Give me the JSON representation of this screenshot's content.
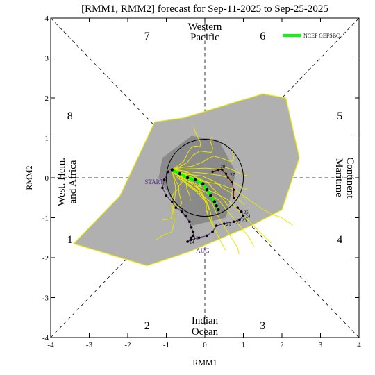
{
  "chart_data": {
    "type": "scatter",
    "title": "[RMM1, RMM2] forecast for Sep-11-2025 to Sep-25-2025",
    "xlabel": "RMM1",
    "ylabel": "RMM2",
    "xlim": [
      -4,
      4
    ],
    "ylim": [
      -4,
      4
    ],
    "x_ticks": [
      "-4",
      "-3",
      "-2",
      "-1",
      "0",
      "1",
      "2",
      "3",
      "4"
    ],
    "y_ticks": [
      "-4",
      "-3",
      "-2",
      "-1",
      "0",
      "1",
      "2",
      "3",
      "4"
    ],
    "grid": false,
    "phases": [
      "1",
      "2",
      "3",
      "4",
      "5",
      "6",
      "7",
      "8"
    ],
    "regions": {
      "top": [
        "Western",
        "Pacific"
      ],
      "bottom": [
        "Indian",
        "Ocean"
      ],
      "left": [
        "West. Hem.",
        "and Africa"
      ],
      "right": [
        "Maritime",
        "Continent"
      ]
    },
    "legend": {
      "label": "NCEP GEFSBC",
      "position": "top-right",
      "color": "#00ff00"
    },
    "annotations": {
      "start": "START",
      "month": "AUG"
    },
    "spread_outer": [
      [
        -3.4,
        -1.65
      ],
      [
        -2.2,
        -0.45
      ],
      [
        -1.3,
        1.4
      ],
      [
        -0.55,
        1.5
      ],
      [
        1.5,
        2.1
      ],
      [
        2.1,
        2.0
      ],
      [
        2.45,
        0.5
      ],
      [
        2.0,
        -0.8
      ],
      [
        1.2,
        -1.2
      ],
      [
        -0.4,
        -1.85
      ],
      [
        -1.5,
        -2.2
      ]
    ],
    "spread_inner": [
      [
        -1.1,
        0.5
      ],
      [
        -0.35,
        1.05
      ],
      [
        0.35,
        0.95
      ],
      [
        0.8,
        0.15
      ],
      [
        0.55,
        -1.0
      ],
      [
        -0.35,
        -1.2
      ],
      [
        -0.85,
        -0.55
      ],
      [
        -1.2,
        0.0
      ]
    ],
    "ensemble_mean": {
      "name": "NCEP GEFSBC",
      "x": [
        -0.85,
        -0.65,
        -0.45,
        -0.25,
        -0.05,
        0.05,
        0.15,
        0.25,
        0.3,
        0.35
      ],
      "y": [
        0.2,
        0.1,
        0.0,
        -0.05,
        -0.15,
        -0.3,
        -0.45,
        -0.6,
        -0.7,
        -0.8
      ]
    },
    "observed": {
      "x": [
        -0.95,
        -1.05,
        -1.1,
        -1.0,
        -0.85,
        -0.75,
        -0.6,
        -0.5,
        -0.4,
        -0.35,
        -0.3,
        -0.3,
        -0.35,
        -0.45,
        -0.35,
        -0.15,
        0.05,
        0.2,
        0.3,
        0.5,
        0.75,
        0.9,
        1.0,
        0.95,
        0.85
      ],
      "y": [
        0.15,
        -0.05,
        -0.25,
        -0.45,
        -0.6,
        -0.75,
        -0.85,
        -0.95,
        -1.1,
        -1.25,
        -1.35,
        -1.45,
        -1.5,
        -1.6,
        -1.55,
        -1.5,
        -1.45,
        -1.35,
        -1.2,
        -1.15,
        -1.1,
        -1.05,
        -0.95,
        -0.85,
        -0.75
      ],
      "labels": [
        "",
        "",
        "",
        "",
        "",
        "",
        "",
        "",
        "",
        "",
        "",
        "",
        "13",
        "14",
        "",
        "",
        "",
        "",
        "",
        "21",
        "22",
        "23",
        "24",
        "25",
        ""
      ]
    },
    "forecast_end": {
      "x": [
        0.2,
        0.35,
        0.45,
        0.55,
        0.6,
        0.7,
        0.75,
        0.75
      ],
      "y": [
        0.15,
        0.2,
        0.2,
        0.1,
        0.0,
        -0.1,
        -0.3,
        -0.5
      ],
      "labels": [
        "",
        "28",
        "",
        "",
        "27",
        "",
        "",
        ""
      ]
    }
  }
}
